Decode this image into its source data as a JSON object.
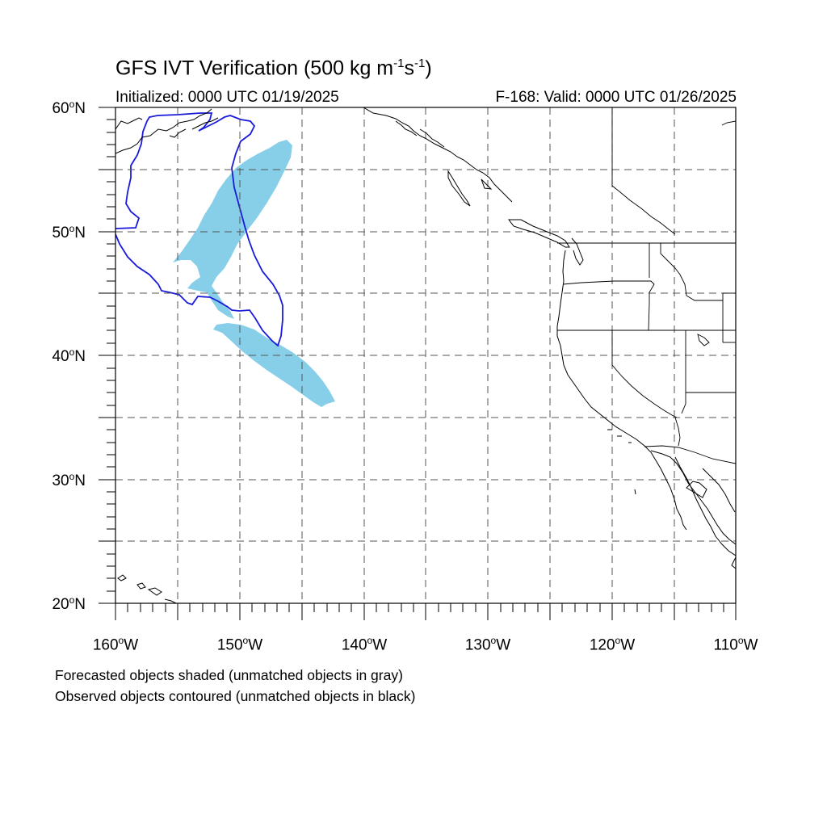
{
  "header": {
    "title_main": "GFS IVT Verification (500 kg m",
    "title_exp1": "-1",
    "title_mid": "s",
    "title_exp2": "-1",
    "title_end": ")",
    "initialized": "Initialized: 0000 UTC 01/19/2025",
    "valid": "F-168: Valid: 0000 UTC 01/26/2025"
  },
  "axes": {
    "lat_labels": [
      {
        "value": "60",
        "suffix": "N"
      },
      {
        "value": "50",
        "suffix": "N"
      },
      {
        "value": "40",
        "suffix": "N"
      },
      {
        "value": "30",
        "suffix": "N"
      },
      {
        "value": "20",
        "suffix": "N"
      }
    ],
    "lon_labels": [
      {
        "value": "160",
        "suffix": "W"
      },
      {
        "value": "150",
        "suffix": "W"
      },
      {
        "value": "140",
        "suffix": "W"
      },
      {
        "value": "130",
        "suffix": "W"
      },
      {
        "value": "120",
        "suffix": "W"
      },
      {
        "value": "110",
        "suffix": "W"
      }
    ],
    "degree_symbol": "o",
    "lat_range": [
      20,
      60
    ],
    "lon_range": [
      -160,
      -110
    ]
  },
  "footer": {
    "line1": "Forecasted objects shaded (unmatched objects in gray)",
    "line2": "Observed objects contoured (unmatched objects in black)"
  },
  "colors": {
    "forecast_fill": "#87CEE8",
    "observed_contour": "#1a1adb",
    "coastline": "#000000",
    "grid": "#555555"
  }
}
